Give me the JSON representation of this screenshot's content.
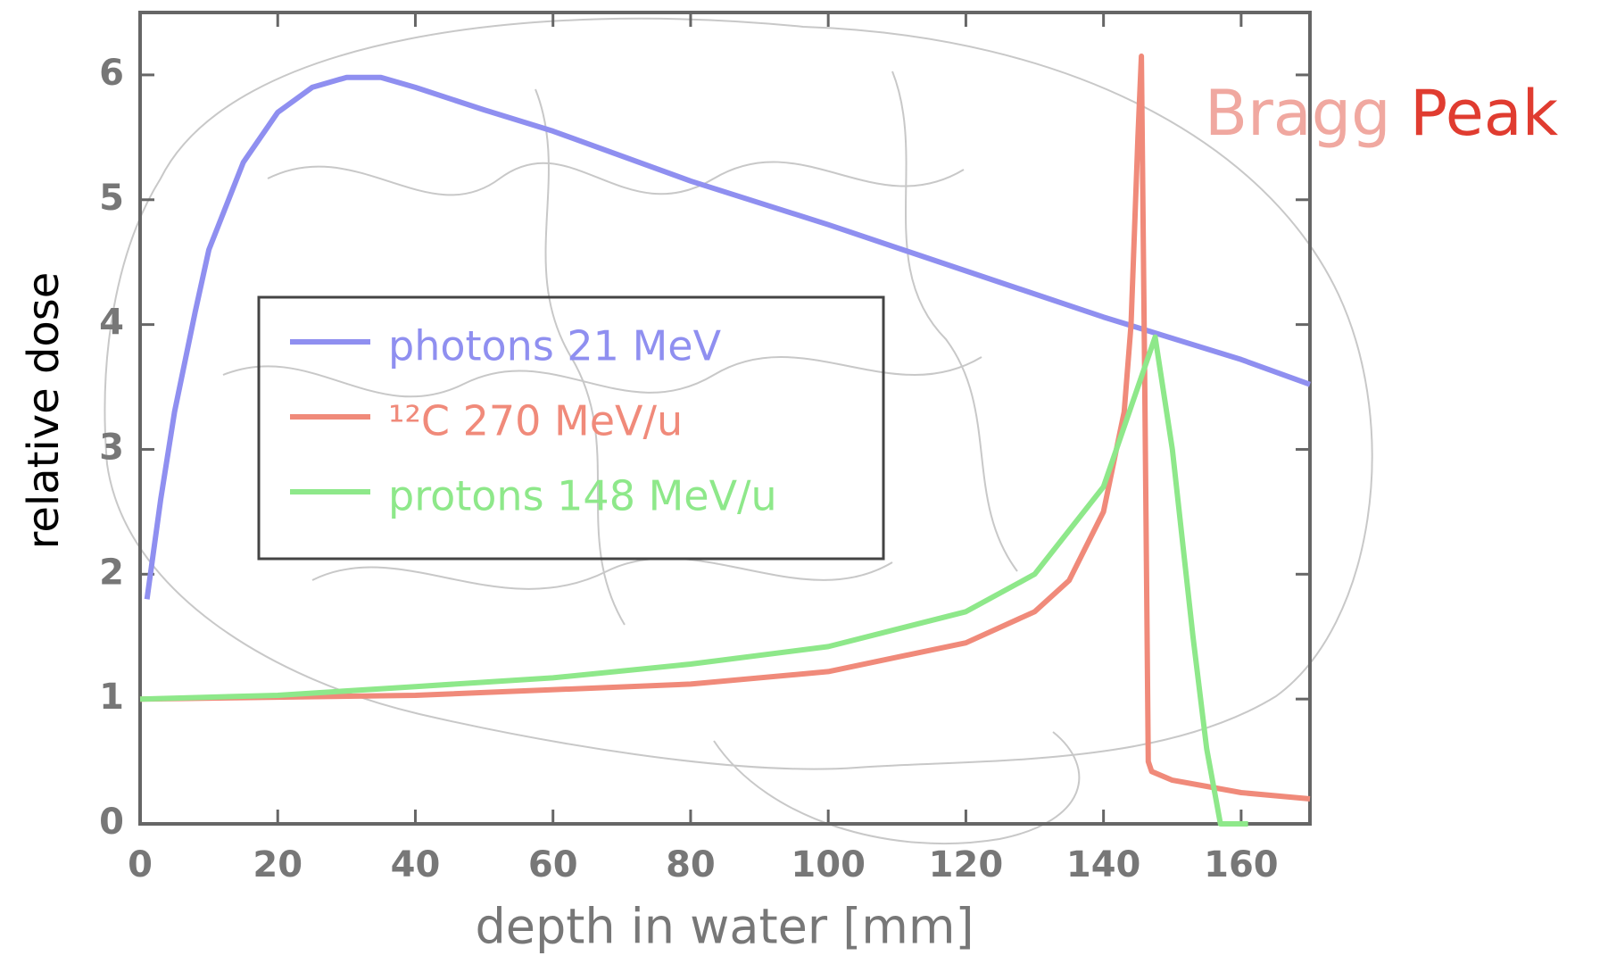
{
  "chart_data": {
    "type": "line",
    "x_label": "depth in water [mm]",
    "y_label": "relative dose",
    "annotations": [
      "Bragg",
      "Peak"
    ],
    "xlim": [
      0,
      170
    ],
    "ylim": [
      0,
      6.5
    ],
    "xticks": [
      0,
      20,
      40,
      60,
      80,
      100,
      120,
      140,
      160
    ],
    "yticks": [
      0,
      1,
      2,
      3,
      4,
      5,
      6
    ],
    "grid": false,
    "legend": "center-left",
    "series": [
      {
        "name": "photons 21 MeV",
        "color": "#8f8ff0",
        "x": [
          1,
          3,
          5,
          8,
          10,
          15,
          20,
          25,
          30,
          35,
          40,
          50,
          60,
          80,
          100,
          120,
          140,
          160,
          170
        ],
        "values": [
          1.8,
          2.6,
          3.3,
          4.1,
          4.6,
          5.3,
          5.7,
          5.9,
          5.98,
          5.98,
          5.9,
          5.72,
          5.55,
          5.15,
          4.8,
          4.43,
          4.06,
          3.72,
          3.52
        ]
      },
      {
        "name": "¹²C 270 MeV/u",
        "color": "#f08a7a",
        "x": [
          0,
          40,
          80,
          100,
          120,
          130,
          135,
          140,
          143,
          144,
          145,
          145.5,
          146,
          146.5,
          147,
          150,
          155,
          160,
          170
        ],
        "values": [
          1.0,
          1.03,
          1.12,
          1.22,
          1.45,
          1.7,
          1.95,
          2.5,
          3.3,
          4.0,
          5.5,
          6.15,
          3.5,
          0.5,
          0.42,
          0.35,
          0.3,
          0.25,
          0.2
        ]
      },
      {
        "name": "protons 148 MeV/u",
        "color": "#8ee88a",
        "x": [
          0,
          20,
          40,
          60,
          80,
          100,
          120,
          130,
          140,
          145,
          147.5,
          150,
          153,
          155,
          157,
          161
        ],
        "values": [
          1.0,
          1.03,
          1.1,
          1.17,
          1.28,
          1.42,
          1.7,
          2.0,
          2.7,
          3.5,
          3.9,
          3.0,
          1.5,
          0.6,
          0,
          0
        ]
      }
    ]
  }
}
